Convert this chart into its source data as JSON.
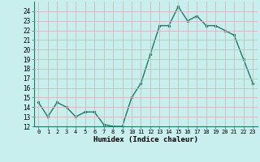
{
  "x": [
    0,
    1,
    2,
    3,
    4,
    5,
    6,
    7,
    8,
    9,
    10,
    11,
    12,
    13,
    14,
    15,
    16,
    17,
    18,
    19,
    20,
    21,
    22,
    23
  ],
  "y": [
    14.5,
    13.0,
    14.5,
    14.0,
    13.0,
    13.5,
    13.5,
    12.2,
    12.0,
    12.0,
    15.0,
    16.5,
    19.5,
    22.5,
    22.5,
    24.5,
    23.0,
    23.5,
    22.5,
    22.5,
    22.0,
    21.5,
    19.0,
    16.5
  ],
  "ylim": [
    12,
    25
  ],
  "yticks": [
    12,
    13,
    14,
    15,
    16,
    17,
    18,
    19,
    20,
    21,
    22,
    23,
    24
  ],
  "xtick_labels": [
    "0",
    "1",
    "2",
    "3",
    "4",
    "5",
    "6",
    "7",
    "8",
    "9",
    "10",
    "11",
    "12",
    "13",
    "14",
    "15",
    "16",
    "17",
    "18",
    "19",
    "20",
    "21",
    "22",
    "23"
  ],
  "xlabel": "Humidex (Indice chaleur)",
  "line_color": "#1a7a6a",
  "marker_color": "#1a7a6a",
  "bg_color": "#c8eeee",
  "grid_color": "#b8d8d8"
}
